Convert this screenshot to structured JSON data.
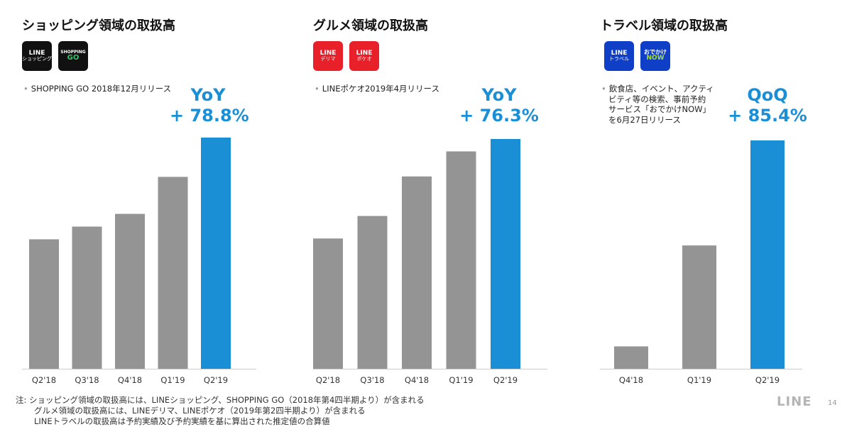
{
  "panels": [
    {
      "title": "ショッピング領域の取扱高",
      "logos": [
        {
          "line1": "LINE",
          "line2": "ショッピング",
          "bg": "#111111",
          "accent": "#ffffff"
        },
        {
          "line1": "SHOPPING",
          "line2": "GO",
          "bg": "#111111",
          "accent": "#3ac26b"
        }
      ],
      "notes": [
        "SHOPPING GO 2018年12月リリース"
      ],
      "growth_label": "YoY",
      "growth_value": "+ 78.8%"
    },
    {
      "title": "グルメ領域の取扱高",
      "logos": [
        {
          "line1": "LINE",
          "line2": "デリマ",
          "bg": "#e8202a",
          "accent": "#ffffff"
        },
        {
          "line1": "LINE",
          "line2": "ポケオ",
          "bg": "#e8202a",
          "accent": "#ffffff"
        }
      ],
      "notes": [
        "LINEポケオ2019年4月リリース"
      ],
      "growth_label": "YoY",
      "growth_value": "+ 76.3%"
    },
    {
      "title": "トラベル領域の取扱高",
      "logos": [
        {
          "line1": "LINE",
          "line2": "トラベル",
          "bg": "#0f3ec7",
          "accent": "#ffffff"
        },
        {
          "line1": "おでかけ",
          "line2": "NOW",
          "bg": "#0f3ec7",
          "accent": "#a6e22e"
        }
      ],
      "notes": [
        "飲食店、イベント、アクティ",
        "ビティ等の検索、事前予約",
        "サービス「おでかけNOW」",
        "を6月27日リリース"
      ],
      "growth_label": "QoQ",
      "growth_value": "+ 85.4%"
    }
  ],
  "chart_data": [
    {
      "type": "bar",
      "categories": [
        "Q2'18",
        "Q3'18",
        "Q4'18",
        "Q1'19",
        "Q2'19"
      ],
      "values": [
        56,
        61.5,
        67,
        83,
        100
      ],
      "ylim": [
        0,
        100
      ],
      "highlight_index": 4,
      "grid": false,
      "y_axis_labels": false
    },
    {
      "type": "bar",
      "categories": [
        "Q2'18",
        "Q3'18",
        "Q4'18",
        "Q1'19",
        "Q2'19"
      ],
      "values": [
        56.7,
        66.5,
        83.7,
        94.6,
        100
      ],
      "ylim": [
        0,
        100
      ],
      "highlight_index": 4,
      "grid": false,
      "y_axis_labels": false
    },
    {
      "type": "bar",
      "categories": [
        "Q4'18",
        "Q1'19",
        "Q2'19"
      ],
      "values": [
        9.8,
        54,
        100
      ],
      "ylim": [
        0,
        100
      ],
      "highlight_index": 2,
      "grid": false,
      "y_axis_labels": false
    }
  ],
  "colors": {
    "bar": "#949494",
    "highlight": "#1a8fd6",
    "axis": "#cccccc"
  },
  "footnote": [
    "注: ショッピング領域の取扱高には、LINEショッピング、SHOPPING GO（2018年第4四半期より）が含まれる",
    "グルメ領域の取扱高には、LINEデリマ、LINEポケオ（2019年第2四半期より）が含まれる",
    "LINEトラベルの取扱高は予約実績及び予約実績を基に算出された推定値の合算値"
  ],
  "brand": "LINE",
  "page_number": "14"
}
